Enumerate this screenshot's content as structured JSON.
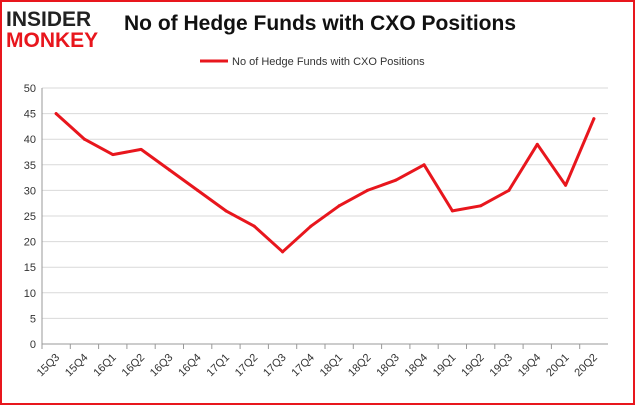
{
  "logo": {
    "line1": "INSIDER",
    "line2": "MONKEY"
  },
  "colors": {
    "series": "#e8161d",
    "grid": "#d9d9d9",
    "frame": "#e8161d",
    "axis": "#999999"
  },
  "chart_data": {
    "type": "line",
    "title": "No of Hedge Funds with CXO Positions",
    "xlabel": "",
    "ylabel": "",
    "categories": [
      "15Q3",
      "15Q4",
      "16Q1",
      "16Q2",
      "16Q3",
      "16Q4",
      "17Q1",
      "17Q2",
      "17Q3",
      "17Q4",
      "18Q1",
      "18Q2",
      "18Q3",
      "18Q4",
      "19Q1",
      "19Q2",
      "19Q3",
      "19Q4",
      "20Q1",
      "20Q2"
    ],
    "series": [
      {
        "name": "No of Hedge Funds with CXO Positions",
        "values": [
          45,
          40,
          37,
          38,
          34,
          30,
          26,
          23,
          18,
          23,
          27,
          30,
          32,
          35,
          26,
          27,
          30,
          39,
          31,
          44
        ]
      }
    ],
    "ylim": [
      0,
      50
    ],
    "yticks": [
      0,
      5,
      10,
      15,
      20,
      25,
      30,
      35,
      40,
      45,
      50
    ],
    "grid": true,
    "legend": "top-center"
  }
}
